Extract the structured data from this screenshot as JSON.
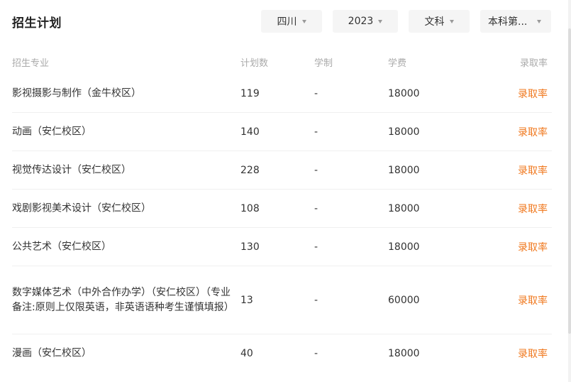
{
  "title": "招生计划",
  "filters": {
    "province": "四川",
    "year": "2023",
    "subject": "文科",
    "batch": "本科第..."
  },
  "table": {
    "headers": {
      "major": "招生专业",
      "plan": "计划数",
      "years": "学制",
      "fee": "学费",
      "rate": "录取率"
    },
    "rows": [
      {
        "major": "影视摄影与制作（金牛校区）",
        "plan": "119",
        "years": "-",
        "fee": "18000",
        "rate": "录取率"
      },
      {
        "major": "动画（安仁校区）",
        "plan": "140",
        "years": "-",
        "fee": "18000",
        "rate": "录取率"
      },
      {
        "major": "视觉传达设计（安仁校区）",
        "plan": "228",
        "years": "-",
        "fee": "18000",
        "rate": "录取率"
      },
      {
        "major": "戏剧影视美术设计（安仁校区）",
        "plan": "108",
        "years": "-",
        "fee": "18000",
        "rate": "录取率"
      },
      {
        "major": "公共艺术（安仁校区）",
        "plan": "130",
        "years": "-",
        "fee": "18000",
        "rate": "录取率"
      },
      {
        "major": "数字媒体艺术（中外合作办学）（安仁校区）（专业备注:原则上仅限英语，非英语语种考生谨慎填报）",
        "plan": "13",
        "years": "-",
        "fee": "60000",
        "rate": "录取率"
      },
      {
        "major": "漫画（安仁校区）",
        "plan": "40",
        "years": "-",
        "fee": "18000",
        "rate": "录取率"
      }
    ]
  },
  "colors": {
    "accent": "#f0781e",
    "header_text": "#aaaaaa",
    "filter_bg": "#f5f5f5"
  }
}
